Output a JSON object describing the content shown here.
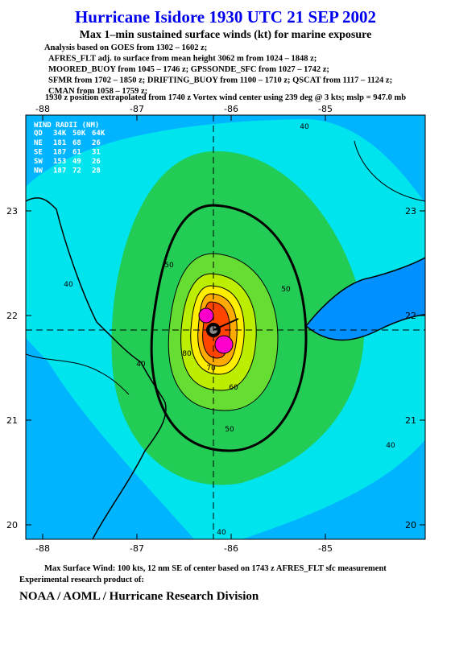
{
  "header": {
    "title": "Hurricane Isidore 1930 UTC 21 SEP 2002",
    "subtitle": "Max 1–min sustained surface winds (kt) for marine exposure",
    "analysis_lines": [
      "Analysis based on  GOES from 1302 – 1602 z;",
      "AFRES_FLT adj. to surface from mean height 3062 m from 1024 – 1848 z;",
      "MOORED_BUOY from 1045 – 1746 z;  GPSSONDE_SFC from 1027 – 1742 z;",
      "SFMR from 1702 – 1850 z;  DRIFTING_BUOY from 1100 – 1710 z;  QSCAT from 1117 – 1124 z;",
      "CMAN from 1058 – 1759 z;"
    ],
    "position_note": "1930 z position extrapolated from 1740 z Vortex wind center using 239 deg @ 3 kts; mslp = 947.0 mb"
  },
  "map": {
    "lon_ticks": [
      -88,
      -87,
      -86,
      -85
    ],
    "lat_ticks": [
      23,
      22,
      21,
      20
    ],
    "contour_labels": [
      "40",
      "50",
      "50",
      "40",
      "60",
      "70",
      "80",
      "50",
      "40",
      "40",
      "40"
    ],
    "wind_radii": {
      "title": "WIND RADII (NM)",
      "columns": [
        "QD",
        "34K",
        "50K",
        "64K"
      ],
      "rows": [
        [
          "NE",
          "181",
          "68",
          "26"
        ],
        [
          "SE",
          "187",
          "61",
          "31"
        ],
        [
          "SW",
          "153",
          "49",
          "26"
        ],
        [
          "NW",
          "187",
          "72",
          "28"
        ]
      ]
    }
  },
  "footer": {
    "max_wind": "Max Surface Wind: 100 kts, 12 nm SE of center based on 1743 z AFRES_FLT sfc measurement",
    "product": "Experimental research product of:",
    "org": "NOAA / AOML / Hurricane Research Division"
  }
}
